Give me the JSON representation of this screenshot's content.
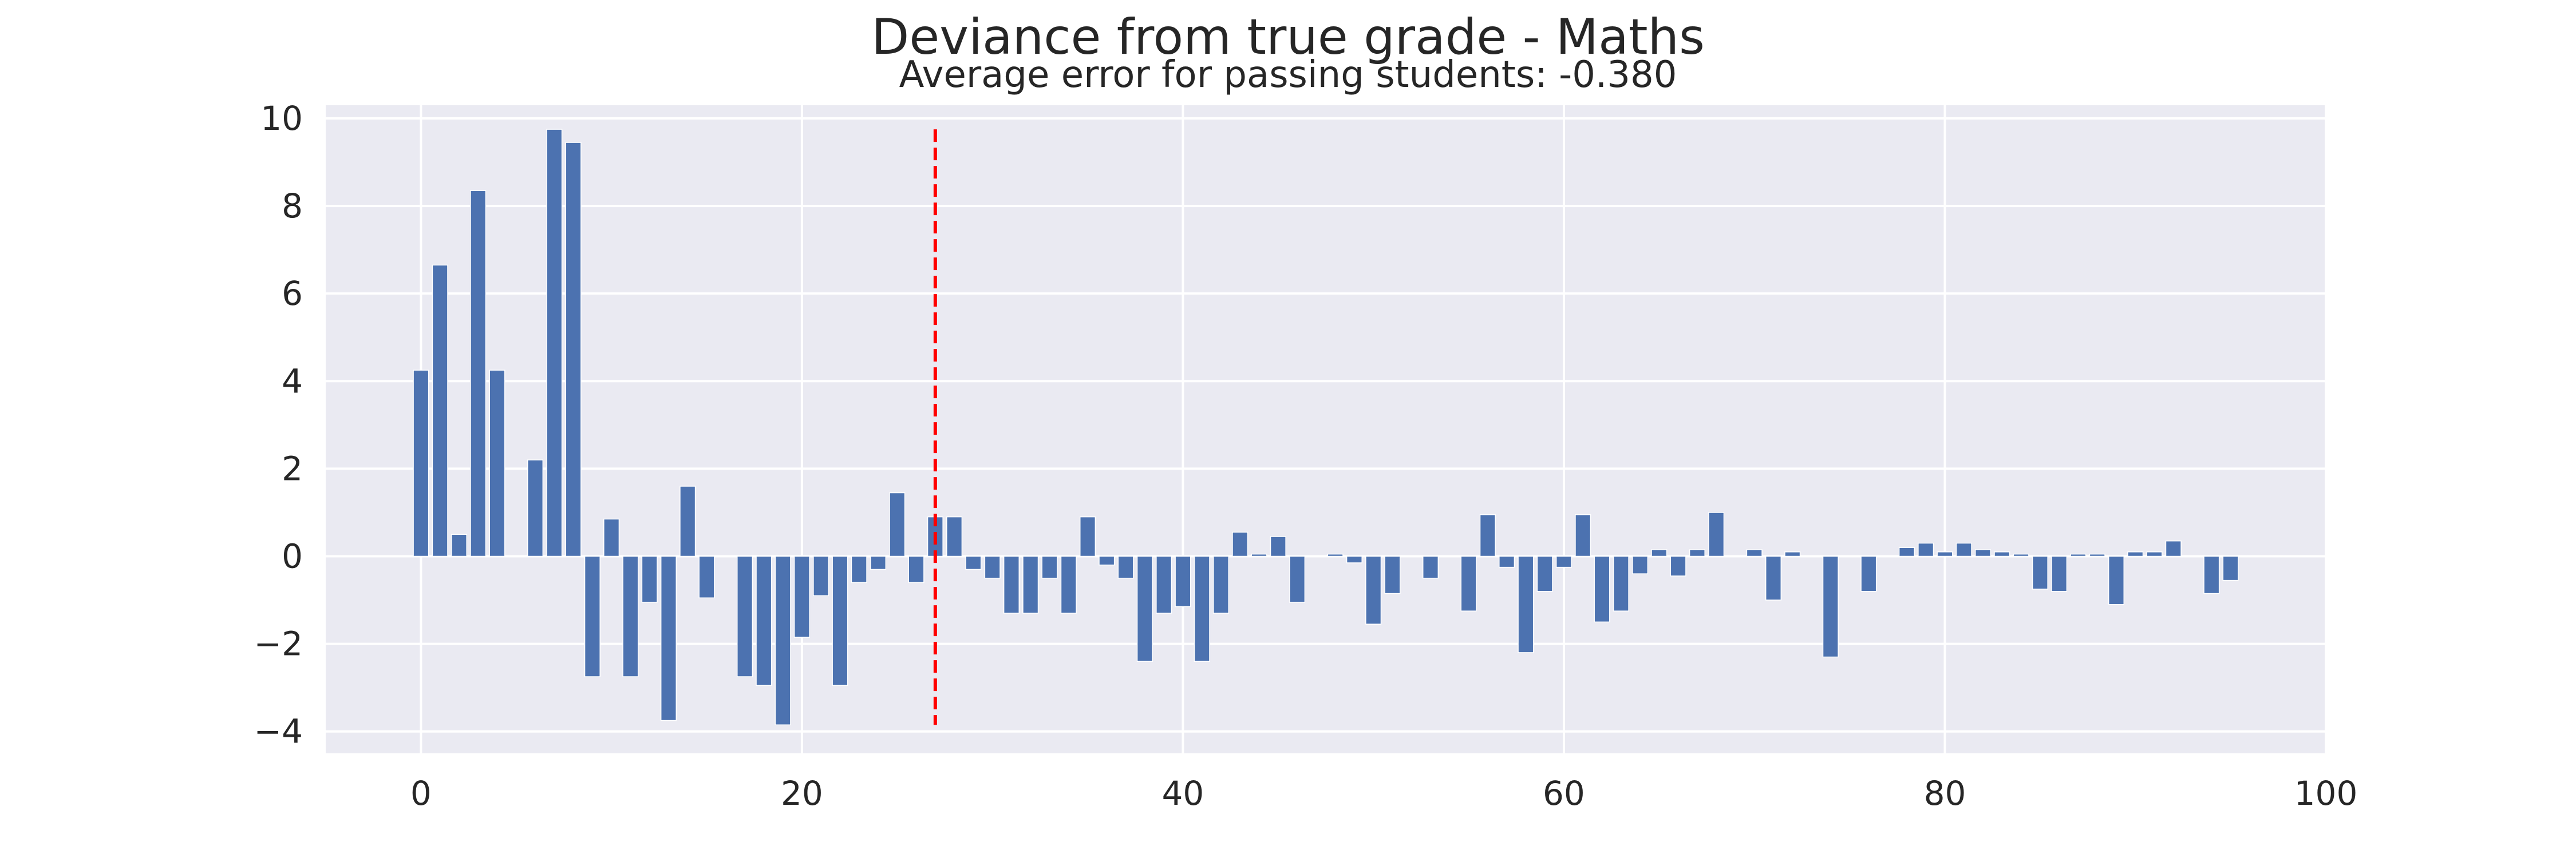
{
  "chart_data": {
    "type": "bar",
    "title": "Deviance from true grade - Maths",
    "subtitle": "Average error for passing students: -0.380",
    "xlabel": "",
    "ylabel": "",
    "xlim": [
      -5,
      100
    ],
    "ylim": [
      -4.5,
      10.3
    ],
    "xticks": [
      0,
      20,
      40,
      60,
      80,
      100
    ],
    "yticks": [
      -4,
      -2,
      0,
      2,
      4,
      6,
      8,
      10
    ],
    "xtick_labels": [
      "0",
      "20",
      "40",
      "60",
      "80",
      "100"
    ],
    "ytick_labels": [
      "−4",
      "−2",
      "0",
      "2",
      "4",
      "6",
      "8",
      "10"
    ],
    "grid": true,
    "x": [
      0,
      1,
      2,
      3,
      4,
      5,
      6,
      7,
      8,
      9,
      10,
      11,
      12,
      13,
      14,
      15,
      16,
      17,
      18,
      19,
      20,
      21,
      22,
      23,
      24,
      25,
      26,
      27,
      28,
      29,
      30,
      31,
      32,
      33,
      34,
      35,
      36,
      37,
      38,
      39,
      40,
      41,
      42,
      43,
      44,
      45,
      46,
      47,
      48,
      49,
      50,
      51,
      52,
      53,
      54,
      55,
      56,
      57,
      58,
      59,
      60,
      61,
      62,
      63,
      64,
      65,
      66,
      67,
      68,
      69,
      70,
      71,
      72,
      73,
      74,
      75,
      76,
      77,
      78,
      79,
      80,
      81,
      82,
      83,
      84,
      85,
      86,
      87,
      88,
      89,
      90,
      91,
      92,
      93,
      94,
      95
    ],
    "values": [
      4.25,
      6.65,
      0.5,
      8.35,
      4.25,
      0,
      2.2,
      9.75,
      9.45,
      -2.75,
      0.85,
      -2.75,
      -1.05,
      -3.75,
      1.6,
      -0.95,
      0,
      -2.75,
      -2.95,
      -3.85,
      -1.85,
      -0.9,
      -2.95,
      -0.6,
      -0.3,
      1.45,
      -0.6,
      0.9,
      0.9,
      -0.3,
      -0.5,
      -1.3,
      -1.3,
      -0.5,
      -1.3,
      0.9,
      -0.2,
      -0.5,
      -2.4,
      -1.3,
      -1.15,
      -2.4,
      -1.3,
      0.55,
      0.05,
      0.45,
      -1.05,
      0,
      0.05,
      -0.15,
      -1.55,
      -0.85,
      0,
      -0.5,
      0,
      -1.25,
      0.95,
      -0.25,
      -2.2,
      -0.8,
      -0.25,
      0.95,
      -1.5,
      -1.25,
      -0.4,
      0.15,
      -0.45,
      0.15,
      1.0,
      0,
      0.15,
      -1.0,
      0.1,
      0,
      -2.3,
      0,
      -0.8,
      0,
      0.2,
      0.3,
      0.1,
      0.3,
      0.15,
      0.1,
      0.05,
      -0.75,
      -0.8,
      0.05,
      0.05,
      -1.1,
      0.1,
      0.1,
      0.35,
      0,
      -0.85,
      -0.55
    ],
    "bar_color": "#4c72b0",
    "reference_line": {
      "x": 27,
      "ymin": -3.85,
      "ymax": 9.75,
      "color": "#ff0000",
      "style": "dashed"
    },
    "colors": {
      "background": "#eaeaf2",
      "grid": "#ffffff",
      "text": "#262626"
    }
  }
}
